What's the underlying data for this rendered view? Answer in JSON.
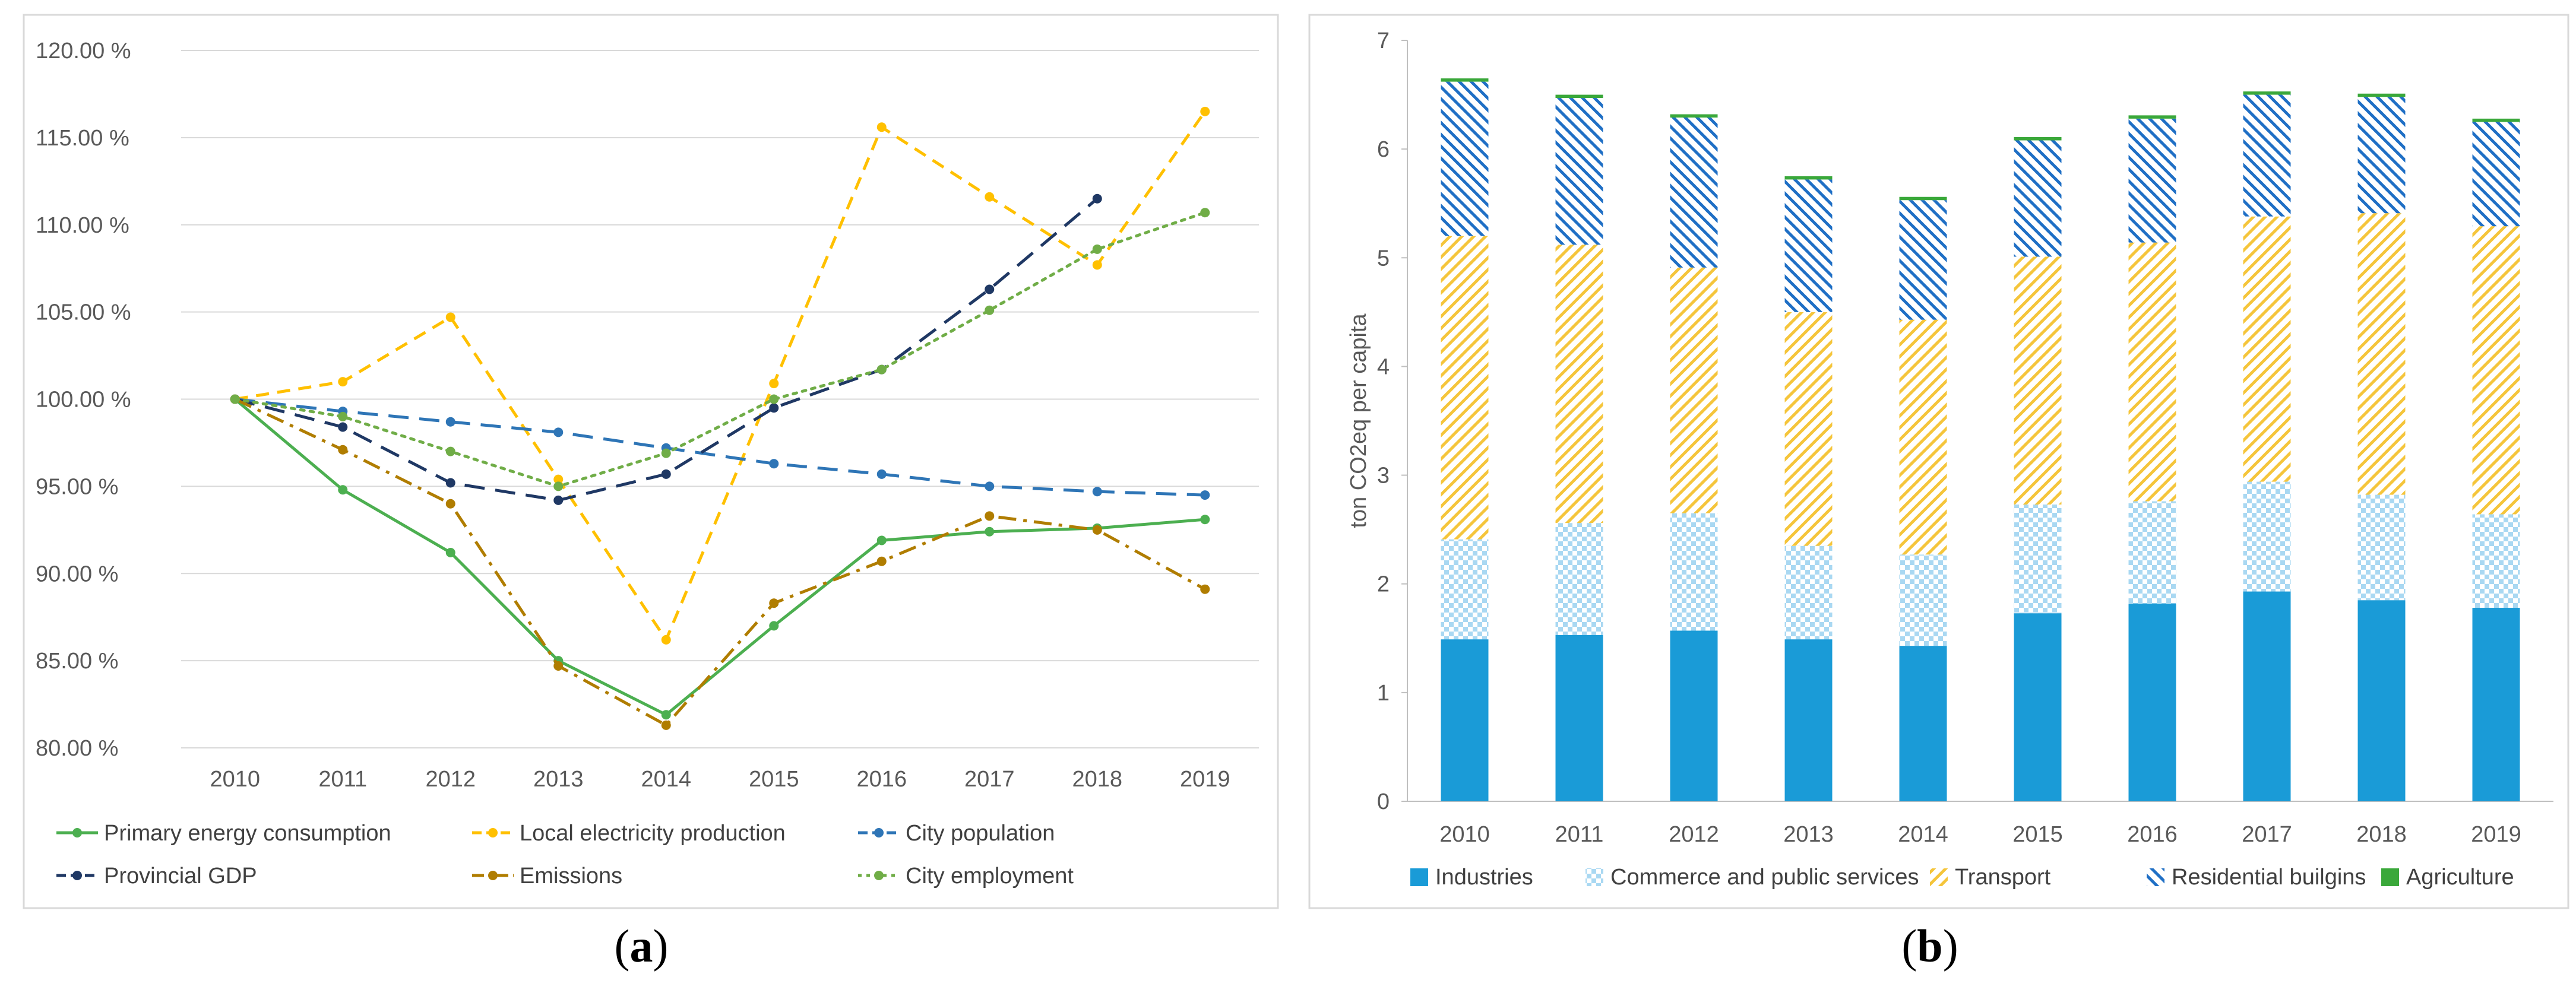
{
  "chart_data": [
    {
      "type": "line",
      "panel_label": "a",
      "x": [
        "2010",
        "2011",
        "2012",
        "2013",
        "2014",
        "2015",
        "2016",
        "2017",
        "2018",
        "2019"
      ],
      "y_ticks": [
        "80.00 %",
        "85.00 %",
        "90.00 %",
        "95.00 %",
        "100.00 %",
        "105.00 %",
        "110.00 %",
        "115.00 %",
        "120.00 %"
      ],
      "ylim": [
        80,
        120
      ],
      "grid": true,
      "legend_position": "bottom",
      "series": [
        {
          "name": "Primary energy consumption",
          "color": "#4caf50",
          "dash": "solid",
          "values": [
            100,
            94.8,
            91.2,
            85.0,
            81.9,
            87.0,
            91.9,
            92.4,
            92.6,
            93.1
          ]
        },
        {
          "name": "Local electricity production",
          "color": "#ffc000",
          "dash": "dash",
          "values": [
            100,
            101.0,
            104.7,
            95.4,
            86.2,
            100.9,
            115.6,
            111.6,
            107.7,
            116.5
          ]
        },
        {
          "name": "City population",
          "color": "#2e75b6",
          "dash": "longdash",
          "values": [
            100,
            99.3,
            98.7,
            98.1,
            97.2,
            96.3,
            95.7,
            95.0,
            94.7,
            94.5
          ]
        },
        {
          "name": "Provincial GDP",
          "color": "#1f3864",
          "dash": "longdash",
          "values": [
            100,
            98.4,
            95.2,
            94.2,
            95.7,
            99.5,
            101.7,
            106.3,
            111.5,
            null
          ]
        },
        {
          "name": "Emissions",
          "color": "#b07d00",
          "dash": "dashdot",
          "values": [
            100,
            97.1,
            94.0,
            84.7,
            81.3,
            88.3,
            90.7,
            93.3,
            92.5,
            89.1
          ]
        },
        {
          "name": "City employment",
          "color": "#70ad47",
          "dash": "dot",
          "values": [
            100,
            99.0,
            97.0,
            95.0,
            96.9,
            100.0,
            101.7,
            105.1,
            108.6,
            110.7
          ]
        }
      ]
    },
    {
      "type": "bar",
      "stacked": true,
      "panel_label": "b",
      "ylabel": "ton CO2eq per capita",
      "categories": [
        "2010",
        "2011",
        "2012",
        "2013",
        "2014",
        "2015",
        "2016",
        "2017",
        "2018",
        "2019"
      ],
      "y_ticks": [
        "0",
        "1",
        "2",
        "3",
        "4",
        "5",
        "6",
        "7"
      ],
      "ylim": [
        0,
        7
      ],
      "grid": false,
      "legend_position": "bottom",
      "series": [
        {
          "name": "Industries",
          "color": "#1a9bd7",
          "pattern": "solid",
          "values": [
            1.49,
            1.53,
            1.57,
            1.49,
            1.43,
            1.73,
            1.82,
            1.93,
            1.85,
            1.78
          ]
        },
        {
          "name": "Commerce and public services",
          "color": "#9ed3f0",
          "pattern": "check",
          "values": [
            0.92,
            1.03,
            1.08,
            0.86,
            0.84,
            1.0,
            0.94,
            1.01,
            0.97,
            0.86
          ]
        },
        {
          "name": "Transport",
          "color": "#f5c53b",
          "pattern": "diag-up",
          "values": [
            2.79,
            2.56,
            2.26,
            2.15,
            2.16,
            2.28,
            2.38,
            2.44,
            2.59,
            2.65
          ]
        },
        {
          "name": "Residential builgins",
          "color": "#1f6fc5",
          "pattern": "diag-down",
          "values": [
            1.42,
            1.35,
            1.38,
            1.22,
            1.1,
            1.07,
            1.14,
            1.12,
            1.07,
            0.96
          ]
        },
        {
          "name": "Agriculture",
          "color": "#3aa83a",
          "pattern": "solid",
          "values": [
            0.03,
            0.03,
            0.03,
            0.03,
            0.03,
            0.03,
            0.03,
            0.03,
            0.03,
            0.03
          ]
        }
      ]
    }
  ]
}
